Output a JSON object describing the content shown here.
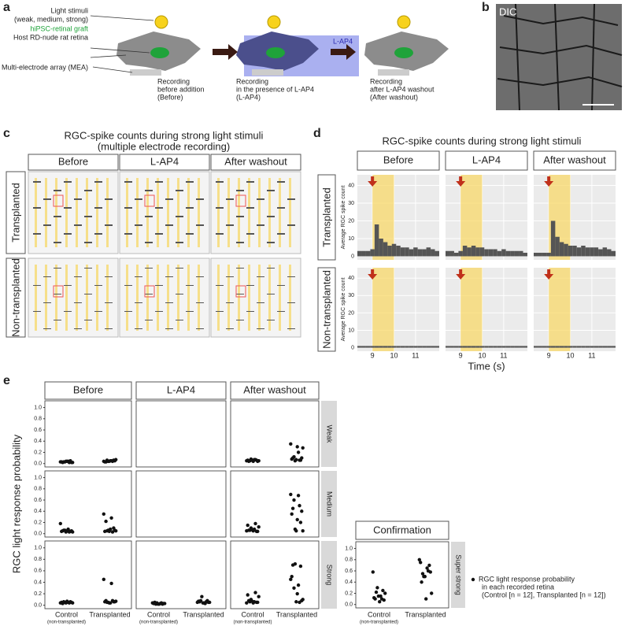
{
  "panel_a": {
    "label": "a",
    "light": "Light stimuli",
    "light_sub": "(weak, medium, strong)",
    "graft": "hiPSC-retinal graft",
    "host": "Host RD-nude rat retina",
    "mea": "Multi-electrode array (MEA)",
    "tag": "L-AP4",
    "steps": [
      [
        "Recording",
        "before addition",
        "(Before)"
      ],
      [
        "Recording",
        "in the presence of L-AP4",
        "(L-AP4)"
      ],
      [
        "Recording",
        "after L-AP4 washout",
        "(After washout)"
      ]
    ]
  },
  "panel_b": {
    "label": "b",
    "text": "DIC"
  },
  "panel_c": {
    "label": "c",
    "title": [
      "RGC-spike counts during strong light stimuli",
      "(multiple electrode recording)"
    ],
    "columns": [
      "Before",
      "L-AP4",
      "After washout"
    ],
    "rows": [
      "Transplanted",
      "Non-transplanted"
    ]
  },
  "panel_d": {
    "label": "d",
    "title": "RGC-spike counts during strong light stimuli",
    "columns": [
      "Before",
      "L-AP4",
      "After washout"
    ],
    "rows": [
      "Transplanted",
      "Non-transplanted"
    ],
    "y_label": "Average RGC spike count",
    "x_label": "Time (s)",
    "ylim": [
      -2,
      46
    ],
    "yticks": [
      0,
      10,
      20,
      30,
      40
    ],
    "xlim": [
      8.3,
      12.1
    ],
    "xticks": [
      9,
      10,
      11
    ],
    "stimulus": [
      9,
      10
    ],
    "bins": [
      8.3,
      8.5,
      8.7,
      8.9,
      9.1,
      9.3,
      9.5,
      9.7,
      9.9,
      10.1,
      10.3,
      10.5,
      10.7,
      10.9,
      11.1,
      11.3,
      11.5,
      11.7,
      11.9,
      12.1
    ],
    "counts": [
      [
        [
          3,
          3,
          3,
          4,
          18,
          10,
          8,
          6,
          7,
          6,
          5,
          5,
          4,
          5,
          4,
          4,
          5,
          4,
          3
        ],
        [
          3,
          3,
          2,
          3,
          6,
          5,
          6,
          5,
          5,
          4,
          4,
          4,
          3,
          4,
          3,
          3,
          3,
          3,
          2
        ],
        [
          2,
          2,
          2,
          2,
          20,
          11,
          8,
          7,
          6,
          6,
          5,
          6,
          5,
          5,
          5,
          4,
          5,
          4,
          3
        ]
      ],
      [
        [
          1,
          1,
          1,
          1,
          1,
          1,
          1,
          1,
          1,
          1,
          1,
          1,
          1,
          1,
          1,
          1,
          1,
          1,
          1
        ],
        [
          1,
          1,
          1,
          1,
          1,
          1,
          1,
          1,
          1,
          1,
          1,
          1,
          1,
          1,
          1,
          1,
          1,
          1,
          1
        ],
        [
          1,
          1,
          1,
          1,
          1,
          1,
          1,
          1,
          1,
          1,
          1,
          1,
          1,
          1,
          1,
          1,
          1,
          1,
          1
        ]
      ]
    ]
  },
  "panel_e": {
    "label": "e",
    "y_label": "RGC light response probability",
    "columns": [
      "Before",
      "L-AP4",
      "After washout"
    ],
    "rows": [
      "Weak",
      "Medium",
      "Strong"
    ],
    "categories": [
      "Control",
      "Transplanted"
    ],
    "category_note": "(non-transplanted)",
    "ylim": [
      -0.06,
      1.12
    ],
    "yticks": [
      {
        "value": 0,
        "label": "0.0"
      },
      {
        "value": 0.2,
        "label": "0.2"
      },
      {
        "value": 0.4,
        "label": "0.4"
      },
      {
        "value": 0.6,
        "label": "0.6"
      },
      {
        "value": 0.8,
        "label": "0.8"
      },
      {
        "value": 1,
        "label": "1.0"
      }
    ],
    "grid": [
      [
        {
          "control": [
            0.03,
            0.04,
            0.02,
            0.05,
            0.03,
            0.02,
            0.04,
            0.03,
            0.02,
            0.03,
            0.02,
            0.04
          ],
          "transplanted": [
            0.04,
            0.05,
            0.03,
            0.06,
            0.04,
            0.07,
            0.05,
            0.03,
            0.04,
            0.06,
            0.05,
            0.04
          ]
        },
        null,
        {
          "control": [
            0.05,
            0.07,
            0.04,
            0.06,
            0.08,
            0.05,
            0.04,
            0.06,
            0.07,
            0.05,
            0.04,
            0.06
          ],
          "transplanted": [
            0.35,
            0.2,
            0.1,
            0.06,
            0.05,
            0.28,
            0.3,
            0.08,
            0.06,
            0.12,
            0.1,
            0.07
          ]
        }
      ],
      [
        {
          "control": [
            0.18,
            0.08,
            0.05,
            0.04,
            0.06,
            0.03,
            0.05,
            0.04,
            0.03,
            0.06,
            0.05,
            0.03
          ],
          "transplanted": [
            0.35,
            0.28,
            0.22,
            0.1,
            0.06,
            0.05,
            0.08,
            0.04,
            0.03,
            0.05,
            0.06,
            0.04
          ]
        },
        null,
        {
          "control": [
            0.05,
            0.08,
            0.06,
            0.04,
            0.1,
            0.12,
            0.05,
            0.15,
            0.18,
            0.06,
            0.04,
            0.07
          ],
          "transplanted": [
            0.7,
            0.68,
            0.45,
            0.2,
            0.08,
            0.05,
            0.25,
            0.35,
            0.5,
            0.6,
            0.4,
            0.05
          ]
        }
      ],
      [
        {
          "control": [
            0.04,
            0.05,
            0.03,
            0.06,
            0.05,
            0.04,
            0.07,
            0.05,
            0.04,
            0.06,
            0.05,
            0.04
          ],
          "transplanted": [
            0.45,
            0.38,
            0.08,
            0.06,
            0.05,
            0.07,
            0.04,
            0.06,
            0.08,
            0.05,
            0.06,
            0.04
          ]
        },
        {
          "control": [
            0.04,
            0.03,
            0.05,
            0.02,
            0.04,
            0.03,
            0.02,
            0.03,
            0.04,
            0.02,
            0.03,
            0.02
          ],
          "transplanted": [
            0.05,
            0.03,
            0.06,
            0.08,
            0.15,
            0.05,
            0.04,
            0.07,
            0.06,
            0.08,
            0.05,
            0.04
          ]
        },
        {
          "control": [
            0.04,
            0.06,
            0.08,
            0.05,
            0.1,
            0.15,
            0.04,
            0.18,
            0.22,
            0.06,
            0.05,
            0.07
          ],
          "transplanted": [
            0.45,
            0.35,
            0.7,
            0.68,
            0.72,
            0.1,
            0.2,
            0.5,
            0.05,
            0.3,
            0.08,
            0.06
          ]
        }
      ]
    ],
    "confirmation": {
      "title": "Confirmation",
      "row": "Super strong",
      "control": [
        0.58,
        0.15,
        0.1,
        0.25,
        0.3,
        0.2,
        0.05,
        0.12,
        0.1,
        0.22,
        0.08,
        0.15
      ],
      "transplanted": [
        0.8,
        0.65,
        0.4,
        0.7,
        0.5,
        0.2,
        0.1,
        0.75,
        0.6,
        0.55,
        0.58,
        0.5
      ]
    },
    "legend": [
      "RGC light response probability",
      "in each recorded retina",
      "(Control [n = 12], Transplanted [n = 12])"
    ]
  }
}
